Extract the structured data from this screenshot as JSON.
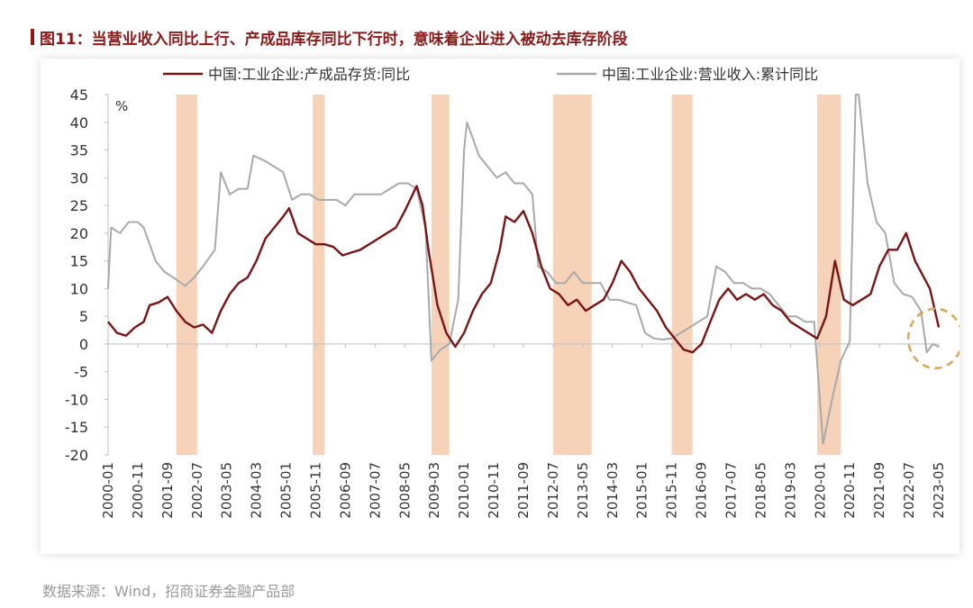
{
  "title": "图11：当营业收入同比上行、产成品库存同比下行时，意味着企业进入被动去库存阶段",
  "source": "数据来源：Wind，招商证券金融产品部",
  "chart_data": {
    "type": "line",
    "title": "图11：当营业收入同比上行、产成品库存同比下行时，意味着企业进入被动去库存阶段",
    "ylabel": "%",
    "ylim": [
      -20,
      45
    ],
    "yticks": [
      45,
      40,
      35,
      30,
      25,
      20,
      15,
      10,
      5,
      0,
      -5,
      -10,
      -15,
      -20
    ],
    "xlim": [
      "2000-01",
      "2023-05"
    ],
    "xticks": [
      "2000-01",
      "2000-11",
      "2001-09",
      "2002-07",
      "2003-05",
      "2004-03",
      "2005-01",
      "2005-11",
      "2006-09",
      "2007-07",
      "2008-05",
      "2009-03",
      "2010-01",
      "2010-11",
      "2011-09",
      "2012-07",
      "2013-05",
      "2014-03",
      "2015-01",
      "2015-11",
      "2016-09",
      "2017-07",
      "2018-05",
      "2019-03",
      "2020-01",
      "2020-11",
      "2021-09",
      "2022-07",
      "2023-05"
    ],
    "legend_position": "top",
    "shaded_periods": [
      {
        "start": "2001-12",
        "end": "2002-07"
      },
      {
        "start": "2005-10",
        "end": "2006-02"
      },
      {
        "start": "2009-02",
        "end": "2009-08"
      },
      {
        "start": "2012-07",
        "end": "2013-08"
      },
      {
        "start": "2015-11",
        "end": "2016-06"
      },
      {
        "start": "2019-12",
        "end": "2020-08"
      }
    ],
    "highlight_circle": {
      "center": "2023-02",
      "value": 1
    },
    "colors": {
      "inventory": "#7b1414",
      "revenue": "#a9a9a9",
      "shade": "#f6d3b8",
      "circle": "#d9a55a",
      "axis": "#bfbfbf"
    },
    "series": [
      {
        "name": "中国:工业企业:产成品存货:同比",
        "color": "#7b1414",
        "points": [
          [
            "2000-01",
            4
          ],
          [
            "2000-04",
            2
          ],
          [
            "2000-07",
            1.5
          ],
          [
            "2000-10",
            3
          ],
          [
            "2001-01",
            4
          ],
          [
            "2001-03",
            7
          ],
          [
            "2001-06",
            7.5
          ],
          [
            "2001-09",
            8.5
          ],
          [
            "2001-12",
            6
          ],
          [
            "2002-03",
            4
          ],
          [
            "2002-06",
            3
          ],
          [
            "2002-09",
            3.5
          ],
          [
            "2002-12",
            2
          ],
          [
            "2003-03",
            6
          ],
          [
            "2003-06",
            9
          ],
          [
            "2003-09",
            11
          ],
          [
            "2003-12",
            12
          ],
          [
            "2004-03",
            15
          ],
          [
            "2004-06",
            19
          ],
          [
            "2004-09",
            21
          ],
          [
            "2004-12",
            23
          ],
          [
            "2005-02",
            24.5
          ],
          [
            "2005-05",
            20
          ],
          [
            "2005-08",
            19
          ],
          [
            "2005-11",
            18
          ],
          [
            "2006-02",
            18
          ],
          [
            "2006-05",
            17.5
          ],
          [
            "2006-08",
            16
          ],
          [
            "2006-11",
            16.5
          ],
          [
            "2007-02",
            17
          ],
          [
            "2007-05",
            18
          ],
          [
            "2007-08",
            19
          ],
          [
            "2007-11",
            20
          ],
          [
            "2008-02",
            21
          ],
          [
            "2008-05",
            24
          ],
          [
            "2008-09",
            28.5
          ],
          [
            "2008-11",
            25
          ],
          [
            "2009-01",
            17
          ],
          [
            "2009-04",
            7
          ],
          [
            "2009-07",
            2
          ],
          [
            "2009-10",
            -0.5
          ],
          [
            "2010-01",
            2
          ],
          [
            "2010-04",
            6
          ],
          [
            "2010-07",
            9
          ],
          [
            "2010-10",
            11
          ],
          [
            "2011-01",
            17
          ],
          [
            "2011-03",
            23
          ],
          [
            "2011-06",
            22
          ],
          [
            "2011-09",
            24
          ],
          [
            "2011-12",
            20
          ],
          [
            "2012-03",
            14
          ],
          [
            "2012-06",
            10
          ],
          [
            "2012-09",
            9
          ],
          [
            "2012-12",
            7
          ],
          [
            "2013-03",
            8
          ],
          [
            "2013-06",
            6
          ],
          [
            "2013-09",
            7
          ],
          [
            "2013-12",
            8
          ],
          [
            "2014-03",
            11
          ],
          [
            "2014-06",
            15
          ],
          [
            "2014-09",
            13
          ],
          [
            "2014-12",
            10
          ],
          [
            "2015-03",
            8
          ],
          [
            "2015-06",
            6
          ],
          [
            "2015-09",
            3
          ],
          [
            "2015-12",
            1
          ],
          [
            "2016-03",
            -1
          ],
          [
            "2016-06",
            -1.5
          ],
          [
            "2016-09",
            0
          ],
          [
            "2016-12",
            4
          ],
          [
            "2017-03",
            8
          ],
          [
            "2017-06",
            10
          ],
          [
            "2017-09",
            8
          ],
          [
            "2017-12",
            9
          ],
          [
            "2018-03",
            8
          ],
          [
            "2018-06",
            9
          ],
          [
            "2018-09",
            7
          ],
          [
            "2018-12",
            6
          ],
          [
            "2019-03",
            4
          ],
          [
            "2019-06",
            3
          ],
          [
            "2019-09",
            2
          ],
          [
            "2019-12",
            1
          ],
          [
            "2020-03",
            5
          ],
          [
            "2020-06",
            15
          ],
          [
            "2020-09",
            8
          ],
          [
            "2020-12",
            7
          ],
          [
            "2021-03",
            8
          ],
          [
            "2021-06",
            9
          ],
          [
            "2021-09",
            14
          ],
          [
            "2021-12",
            17
          ],
          [
            "2022-03",
            17
          ],
          [
            "2022-06",
            20
          ],
          [
            "2022-09",
            15
          ],
          [
            "2022-12",
            12
          ],
          [
            "2023-02",
            10
          ],
          [
            "2023-05",
            3
          ]
        ]
      },
      {
        "name": "中国:工业企业:营业收入:累计同比",
        "color": "#a9a9a9",
        "points": [
          [
            "2000-01",
            10
          ],
          [
            "2000-02",
            21
          ],
          [
            "2000-05",
            20
          ],
          [
            "2000-08",
            22
          ],
          [
            "2000-11",
            22
          ],
          [
            "2001-01",
            21
          ],
          [
            "2001-05",
            15
          ],
          [
            "2001-08",
            13
          ],
          [
            "2001-11",
            12
          ],
          [
            "2002-03",
            10.5
          ],
          [
            "2002-06",
            12
          ],
          [
            "2002-09",
            14
          ],
          [
            "2003-01",
            17
          ],
          [
            "2003-03",
            31
          ],
          [
            "2003-06",
            27
          ],
          [
            "2003-09",
            28
          ],
          [
            "2003-12",
            28
          ],
          [
            "2004-02",
            34
          ],
          [
            "2004-06",
            33
          ],
          [
            "2004-09",
            32
          ],
          [
            "2004-12",
            31
          ],
          [
            "2005-03",
            26
          ],
          [
            "2005-06",
            27
          ],
          [
            "2005-09",
            27
          ],
          [
            "2005-12",
            26
          ],
          [
            "2006-03",
            26
          ],
          [
            "2006-06",
            26
          ],
          [
            "2006-09",
            25
          ],
          [
            "2006-12",
            27
          ],
          [
            "2007-03",
            27
          ],
          [
            "2007-06",
            27
          ],
          [
            "2007-09",
            27
          ],
          [
            "2007-12",
            28
          ],
          [
            "2008-03",
            29
          ],
          [
            "2008-06",
            29
          ],
          [
            "2008-09",
            28
          ],
          [
            "2008-12",
            21
          ],
          [
            "2009-02",
            -3
          ],
          [
            "2009-05",
            -1
          ],
          [
            "2009-08",
            0
          ],
          [
            "2009-11",
            8
          ],
          [
            "2010-01",
            35
          ],
          [
            "2010-02",
            40
          ],
          [
            "2010-06",
            34
          ],
          [
            "2010-09",
            32
          ],
          [
            "2010-12",
            30
          ],
          [
            "2011-03",
            31
          ],
          [
            "2011-06",
            29
          ],
          [
            "2011-09",
            29
          ],
          [
            "2011-12",
            27
          ],
          [
            "2012-02",
            14
          ],
          [
            "2012-05",
            13
          ],
          [
            "2012-08",
            11
          ],
          [
            "2012-11",
            11
          ],
          [
            "2013-02",
            13
          ],
          [
            "2013-05",
            11
          ],
          [
            "2013-08",
            11
          ],
          [
            "2013-11",
            11
          ],
          [
            "2014-02",
            8
          ],
          [
            "2014-05",
            8
          ],
          [
            "2014-08",
            7.5
          ],
          [
            "2014-11",
            7
          ],
          [
            "2015-02",
            2
          ],
          [
            "2015-05",
            1
          ],
          [
            "2015-08",
            0.8
          ],
          [
            "2015-11",
            1
          ],
          [
            "2016-02",
            2
          ],
          [
            "2016-05",
            3
          ],
          [
            "2016-08",
            4
          ],
          [
            "2016-11",
            5
          ],
          [
            "2017-02",
            14
          ],
          [
            "2017-05",
            13
          ],
          [
            "2017-08",
            11
          ],
          [
            "2017-11",
            11
          ],
          [
            "2018-02",
            10
          ],
          [
            "2018-05",
            10
          ],
          [
            "2018-08",
            9
          ],
          [
            "2018-11",
            7
          ],
          [
            "2019-02",
            5
          ],
          [
            "2019-05",
            5
          ],
          [
            "2019-08",
            4
          ],
          [
            "2019-11",
            4
          ],
          [
            "2020-02",
            -18
          ],
          [
            "2020-05",
            -10
          ],
          [
            "2020-08",
            -3
          ],
          [
            "2020-11",
            0.5
          ],
          [
            "2021-01",
            45
          ],
          [
            "2021-02",
            45
          ],
          [
            "2021-05",
            29
          ],
          [
            "2021-08",
            22
          ],
          [
            "2021-11",
            20
          ],
          [
            "2022-02",
            11
          ],
          [
            "2022-05",
            9
          ],
          [
            "2022-08",
            8.5
          ],
          [
            "2022-11",
            6
          ],
          [
            "2023-01",
            -1.5
          ],
          [
            "2023-03",
            0
          ],
          [
            "2023-05",
            -0.5
          ]
        ]
      }
    ]
  }
}
